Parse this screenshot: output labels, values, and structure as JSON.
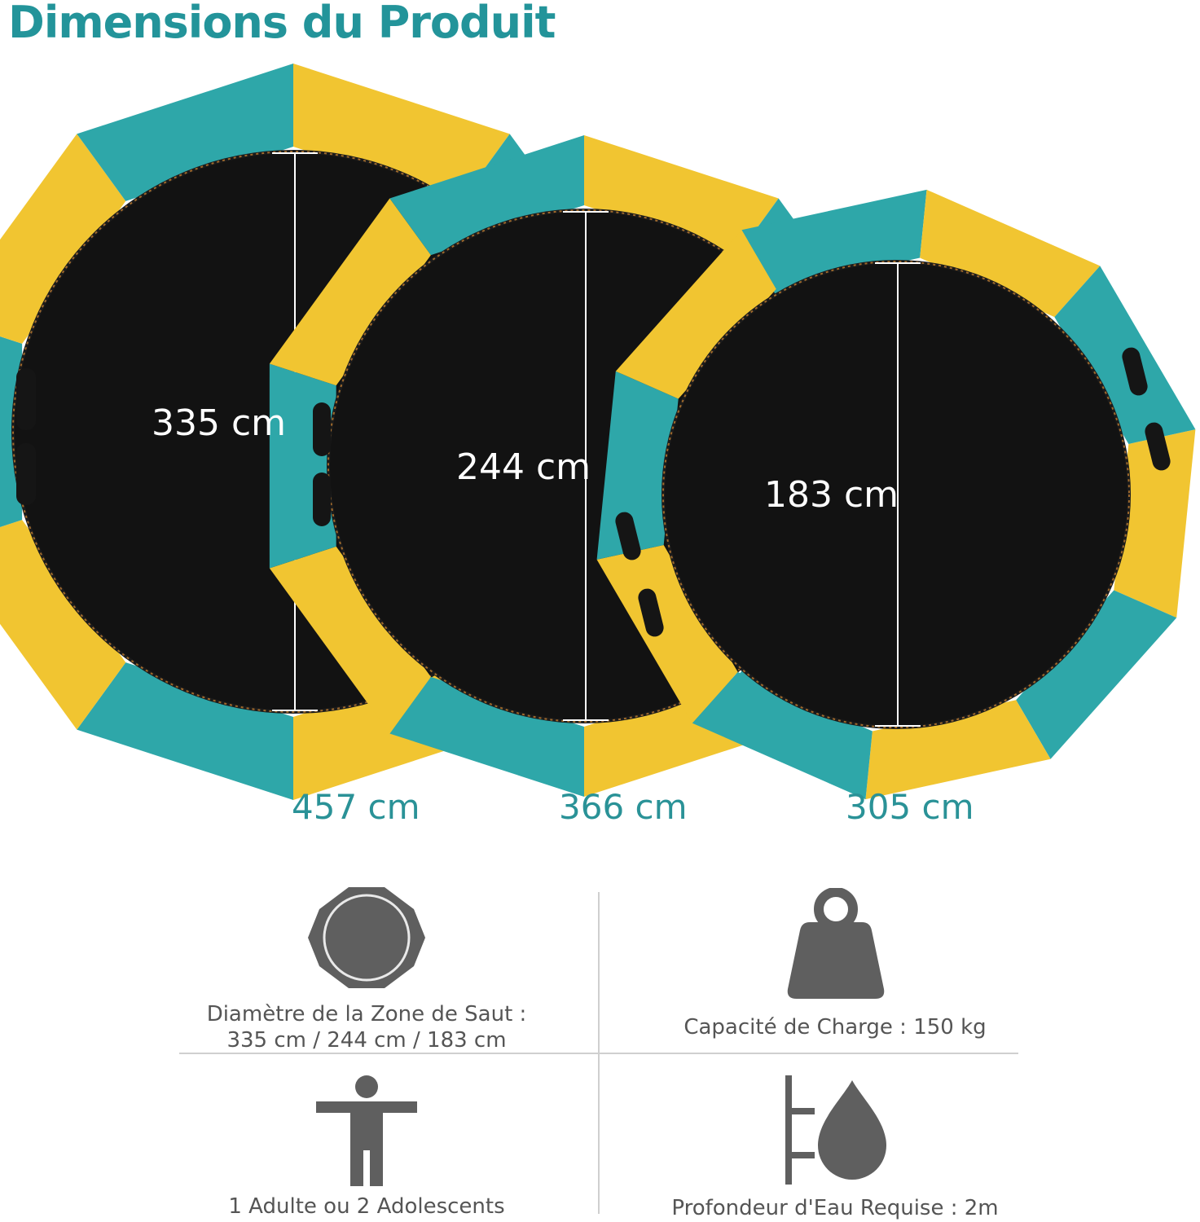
{
  "header": {
    "title": "Dimensions du Produit"
  },
  "colors": {
    "accent": "#23949a",
    "pad_teal": "#2ea7a9",
    "pad_yellow": "#f1c531",
    "mat": "#121212",
    "icon_gray": "#5f5f5f",
    "text_gray": "#555555"
  },
  "trampolines": [
    {
      "name": "large",
      "jump_zone": "335 cm",
      "outer": "457 cm"
    },
    {
      "name": "medium",
      "jump_zone": "244 cm",
      "outer": "366 cm"
    },
    {
      "name": "small",
      "jump_zone": "183 cm",
      "outer": "305 cm"
    }
  ],
  "specs": {
    "diameter": {
      "icon": "octagon-trampoline-icon",
      "line1": "Diamètre de la Zone de Saut :",
      "line2": "335 cm / 244 cm / 183 cm"
    },
    "capacity": {
      "icon": "weight-icon",
      "text": "Capacité de Charge : 150 kg"
    },
    "users": {
      "icon": "person-icon",
      "text": "1 Adulte ou 2 Adolescents"
    },
    "depth": {
      "icon": "water-depth-icon",
      "text": "Profondeur d'Eau Requise : 2m"
    }
  }
}
